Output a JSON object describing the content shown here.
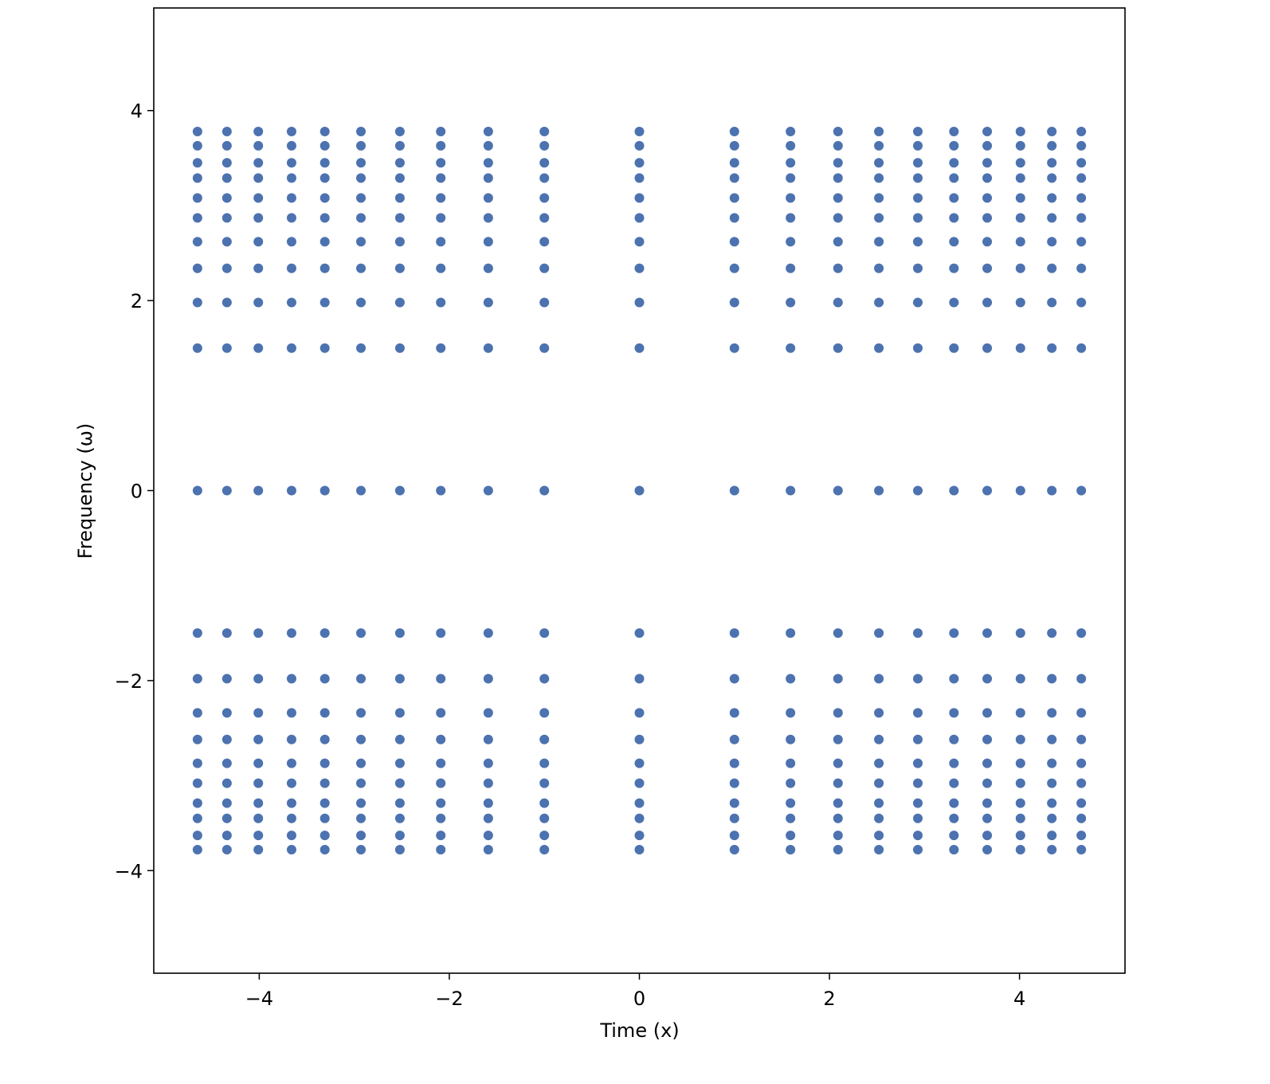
{
  "chart_data": {
    "type": "scatter",
    "x_label": "Time (x)",
    "y_label": "Frequency (ω)",
    "x": [
      -4.65,
      -4.34,
      -4.01,
      -3.66,
      -3.31,
      -2.93,
      -2.52,
      -2.09,
      -1.59,
      -1.0,
      0,
      1.0,
      1.59,
      2.09,
      2.52,
      2.93,
      3.31,
      3.66,
      4.01,
      4.34,
      4.65
    ],
    "y": [
      3.78,
      3.63,
      3.45,
      3.29,
      3.08,
      2.87,
      2.62,
      2.34,
      1.98,
      1.5,
      0,
      -1.5,
      -1.98,
      -2.34,
      -2.62,
      -2.87,
      -3.08,
      -3.29,
      -3.45,
      -3.63,
      -3.78
    ],
    "grid_points": true,
    "color": "#4c72b0",
    "xlim": [
      -5.11,
      5.11
    ],
    "ylim": [
      -5.08,
      5.08
    ],
    "xticks": [
      {
        "value": -4,
        "label": "−4"
      },
      {
        "value": -2,
        "label": "−2"
      },
      0,
      2,
      4
    ],
    "yticks": [
      {
        "value": -4,
        "label": "−4"
      },
      {
        "value": -2,
        "label": "−2"
      },
      0,
      2,
      4
    ]
  }
}
